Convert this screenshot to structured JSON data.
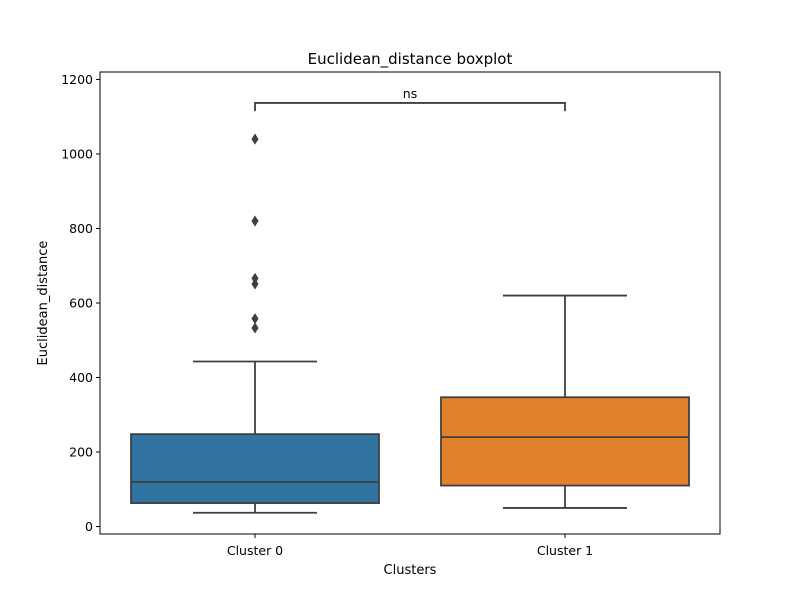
{
  "chart_data": {
    "type": "box",
    "title": "Euclidean_distance boxplot",
    "xlabel": "Clusters",
    "ylabel": "Euclidean_distance",
    "ylim": [
      -20,
      1220
    ],
    "yticks": [
      0,
      200,
      400,
      600,
      800,
      1000,
      1200
    ],
    "ytick_labels": [
      "0",
      "200",
      "400",
      "600",
      "800",
      "1000",
      "1200"
    ],
    "grid": false,
    "categories": [
      "Cluster 0",
      "Cluster 1"
    ],
    "boxes": [
      {
        "category": "Cluster 0",
        "whisker_low": 37,
        "q1": 63,
        "median": 120,
        "q3": 248,
        "whisker_high": 443,
        "outliers": [
          533,
          558,
          651,
          666,
          820,
          1040
        ],
        "color": "#3274a1"
      },
      {
        "category": "Cluster 1",
        "whisker_low": 50,
        "q1": 110,
        "median": 240,
        "q3": 347,
        "whisker_high": 620,
        "outliers": [],
        "color": "#e1812c"
      }
    ],
    "annotation": {
      "text": "ns",
      "between": [
        "Cluster 0",
        "Cluster 1"
      ],
      "bracket_y": 1137,
      "tip_y": 1115
    },
    "line_color": "#3f3f3f"
  }
}
